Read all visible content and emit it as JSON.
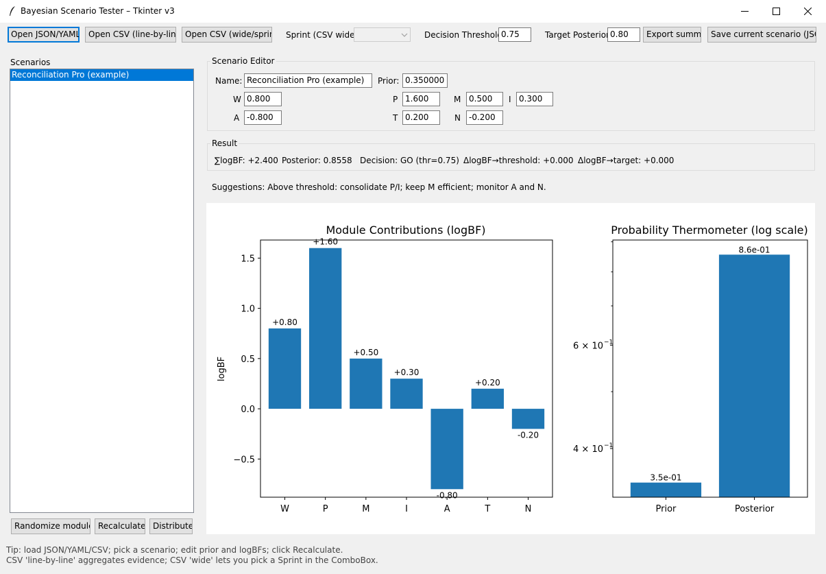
{
  "window": {
    "title": "Bayesian Scenario Tester – Tkinter v3"
  },
  "toolbar": {
    "open_json_yaml": "Open JSON/YAML",
    "open_csv_line": "Open CSV (line-by-line)",
    "open_csv_wide": "Open CSV (wide/sprint)",
    "sprint_label": "Sprint (CSV wide):",
    "sprint_value": "",
    "decision_threshold_label": "Decision Threshold:",
    "decision_threshold_value": "0.75",
    "target_posterior_label": "Target Posterior:",
    "target_posterior_value": "0.80",
    "export_summary": "Export summa",
    "save_scenario": "Save current scenario (JSON)"
  },
  "sidebar": {
    "title": "Scenarios",
    "items": [
      "Reconciliation Pro (example)"
    ],
    "randomize": "Randomize modules",
    "recalculate": "Recalculate",
    "distribute": "Distribute"
  },
  "editor": {
    "title": "Scenario Editor",
    "name_label": "Name:",
    "name_value": "Reconciliation Pro (example)",
    "prior_label": "Prior:",
    "prior_value": "0.350000",
    "W_label": "W",
    "W_value": "0.800",
    "A_label": "A",
    "A_value": "-0.800",
    "P_label": "P",
    "P_value": "1.600",
    "T_label": "T",
    "T_value": "0.200",
    "M_label": "M",
    "M_value": "0.500",
    "N_label": "N",
    "N_value": "-0.200",
    "I_label": "I",
    "I_value": "0.300"
  },
  "result": {
    "title": "Result",
    "sum_logbf": "∑logBF: +2.400",
    "posterior": "Posterior: 0.8558",
    "decision": "Decision: GO (thr=0.75)",
    "delta_threshold": "ΔlogBF→threshold: +0.000",
    "delta_target": "ΔlogBF→target: +0.000"
  },
  "suggestions": "Suggestions: Above threshold: consolidate P/I; keep M efficient; monitor A and N.",
  "tip": {
    "line1": "Tip: load JSON/YAML/CSV; pick a scenario; edit prior and logBFs; click Recalculate.",
    "line2": "CSV 'line-by-line' aggregates evidence; CSV 'wide' lets you pick a Sprint in the ComboBox."
  },
  "colors": {
    "bar": "#1f77b4",
    "selection": "#0078d7"
  },
  "chart_data": [
    {
      "type": "bar",
      "title": "Module Contributions (logBF)",
      "xlabel": "",
      "ylabel": "logBF",
      "categories": [
        "W",
        "P",
        "M",
        "I",
        "A",
        "T",
        "N"
      ],
      "values": [
        0.8,
        1.6,
        0.5,
        0.3,
        -0.8,
        0.2,
        -0.2
      ],
      "data_labels": [
        "+0.80",
        "+1.60",
        "+0.50",
        "+0.30",
        "-0.80",
        "+0.20",
        "-0.20"
      ],
      "ylim": [
        -0.88,
        1.68
      ],
      "yticks": [
        -0.5,
        0.0,
        0.5,
        1.0,
        1.5
      ],
      "ytick_labels": [
        "−0.5",
        "0.0",
        "0.5",
        "1.0",
        "1.5"
      ],
      "grid": false
    },
    {
      "type": "bar",
      "title": "Probability Thermometer (log scale)",
      "xlabel": "",
      "ylabel": "",
      "yscale": "log",
      "categories": [
        "Prior",
        "Posterior"
      ],
      "values": [
        0.35,
        0.8558
      ],
      "data_labels": [
        "3.5e-01",
        "8.6e-01"
      ],
      "ylim": [
        0.3305,
        0.9063
      ],
      "yticks": [
        0.4,
        0.6
      ],
      "ytick_labels": [
        "4 × 10",
        "6 × 10"
      ],
      "ytick_exponent": "−1",
      "grid": false
    }
  ]
}
